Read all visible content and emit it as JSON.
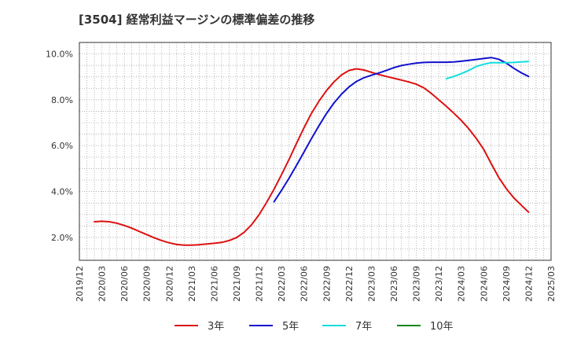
{
  "chart_data": {
    "type": "line",
    "title": "[3504]  経常利益マージンの標準偏差の推移",
    "xlabel": "",
    "ylabel": "",
    "ylim": [
      1.0,
      10.5
    ],
    "yticks": [
      2.0,
      4.0,
      6.0,
      8.0,
      10.0
    ],
    "ytick_labels": [
      "2.0%",
      "4.0%",
      "6.0%",
      "8.0%",
      "10.0%"
    ],
    "xlim": [
      "2019/12",
      "2025/03"
    ],
    "xtick_labels": [
      "2019/12",
      "2020/03",
      "2020/06",
      "2020/09",
      "2020/12",
      "2021/03",
      "2021/06",
      "2021/09",
      "2021/12",
      "2022/03",
      "2022/06",
      "2022/09",
      "2022/12",
      "2023/03",
      "2023/06",
      "2023/09",
      "2023/12",
      "2024/03",
      "2024/06",
      "2024/09",
      "2024/12",
      "2025/03"
    ],
    "grid": true,
    "legend_position": "bottom",
    "series": [
      {
        "name": "3年",
        "color": "#dd1111",
        "x": [
          "2020/02",
          "2020/03",
          "2020/04",
          "2020/05",
          "2020/06",
          "2020/07",
          "2020/08",
          "2020/09",
          "2020/10",
          "2020/11",
          "2020/12",
          "2021/01",
          "2021/02",
          "2021/03",
          "2021/04",
          "2021/05",
          "2021/06",
          "2021/07",
          "2021/08",
          "2021/09",
          "2021/10",
          "2021/11",
          "2021/12",
          "2022/01",
          "2022/02",
          "2022/03",
          "2022/04",
          "2022/05",
          "2022/06",
          "2022/07",
          "2022/08",
          "2022/09",
          "2022/10",
          "2022/11",
          "2022/12",
          "2023/01",
          "2023/02",
          "2023/03",
          "2023/04",
          "2023/05",
          "2023/06",
          "2023/07",
          "2023/08",
          "2023/09",
          "2023/10",
          "2023/11",
          "2023/12",
          "2024/01",
          "2024/02",
          "2024/03",
          "2024/04",
          "2024/05",
          "2024/06",
          "2024/07",
          "2024/08",
          "2024/09",
          "2024/10",
          "2024/11",
          "2024/12"
        ],
        "values": [
          2.68,
          2.7,
          2.68,
          2.62,
          2.52,
          2.4,
          2.26,
          2.12,
          1.98,
          1.86,
          1.76,
          1.69,
          1.66,
          1.66,
          1.68,
          1.71,
          1.74,
          1.78,
          1.86,
          1.99,
          2.22,
          2.55,
          2.99,
          3.52,
          4.1,
          4.73,
          5.4,
          6.1,
          6.78,
          7.41,
          7.94,
          8.4,
          8.78,
          9.08,
          9.28,
          9.35,
          9.3,
          9.2,
          9.1,
          9.02,
          8.94,
          8.86,
          8.78,
          8.68,
          8.52,
          8.28,
          8.0,
          7.72,
          7.42,
          7.1,
          6.74,
          6.32,
          5.84,
          5.22,
          4.62,
          4.13,
          3.73,
          3.41,
          3.1
        ]
      },
      {
        "name": "5年",
        "color": "#1111cc",
        "x": [
          "2022/02",
          "2022/03",
          "2022/04",
          "2022/05",
          "2022/06",
          "2022/07",
          "2022/08",
          "2022/09",
          "2022/10",
          "2022/11",
          "2022/12",
          "2023/01",
          "2023/02",
          "2023/03",
          "2023/04",
          "2023/05",
          "2023/06",
          "2023/07",
          "2023/08",
          "2023/09",
          "2023/10",
          "2023/11",
          "2023/12",
          "2024/01",
          "2024/02",
          "2024/03",
          "2024/04",
          "2024/05",
          "2024/06",
          "2024/07",
          "2024/08",
          "2024/09",
          "2024/10",
          "2024/11",
          "2024/12"
        ],
        "values": [
          3.55,
          4.05,
          4.58,
          5.14,
          5.72,
          6.31,
          6.87,
          7.4,
          7.86,
          8.24,
          8.56,
          8.8,
          8.96,
          9.07,
          9.17,
          9.28,
          9.4,
          9.49,
          9.55,
          9.6,
          9.63,
          9.64,
          9.64,
          9.64,
          9.65,
          9.68,
          9.72,
          9.76,
          9.8,
          9.84,
          9.77,
          9.6,
          9.38,
          9.18,
          9.02
        ]
      },
      {
        "name": "7年",
        "color": "#11dddd",
        "x": [
          "2024/01",
          "2024/02",
          "2024/03",
          "2024/04",
          "2024/05",
          "2024/06",
          "2024/07",
          "2024/08",
          "2024/09",
          "2024/10",
          "2024/11",
          "2024/12"
        ],
        "values": [
          8.92,
          9.02,
          9.14,
          9.28,
          9.45,
          9.55,
          9.62,
          9.62,
          9.62,
          9.63,
          9.65,
          9.67
        ]
      },
      {
        "name": "10年",
        "color": "#118811",
        "x": [],
        "values": []
      }
    ]
  }
}
